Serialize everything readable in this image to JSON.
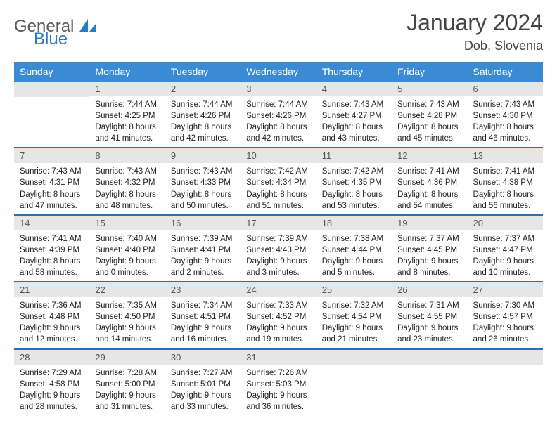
{
  "logo": {
    "part1": "General",
    "part2": "Blue"
  },
  "title": "January 2024",
  "location": "Dob, Slovenia",
  "dow": [
    "Sunday",
    "Monday",
    "Tuesday",
    "Wednesday",
    "Thursday",
    "Friday",
    "Saturday"
  ],
  "colors": {
    "headerBg": "#3b8bd4",
    "rowBorder": "#2a6fb5",
    "dayBarBg": "#e6e6e6",
    "logoBlue": "#2a7bc4",
    "logoGray": "#5a5a5a",
    "text": "#222"
  },
  "weeks": [
    [
      {
        "n": "",
        "lines": []
      },
      {
        "n": "1",
        "lines": [
          "Sunrise: 7:44 AM",
          "Sunset: 4:25 PM",
          "Daylight: 8 hours and 41 minutes."
        ]
      },
      {
        "n": "2",
        "lines": [
          "Sunrise: 7:44 AM",
          "Sunset: 4:26 PM",
          "Daylight: 8 hours and 42 minutes."
        ]
      },
      {
        "n": "3",
        "lines": [
          "Sunrise: 7:44 AM",
          "Sunset: 4:26 PM",
          "Daylight: 8 hours and 42 minutes."
        ]
      },
      {
        "n": "4",
        "lines": [
          "Sunrise: 7:43 AM",
          "Sunset: 4:27 PM",
          "Daylight: 8 hours and 43 minutes."
        ]
      },
      {
        "n": "5",
        "lines": [
          "Sunrise: 7:43 AM",
          "Sunset: 4:28 PM",
          "Daylight: 8 hours and 45 minutes."
        ]
      },
      {
        "n": "6",
        "lines": [
          "Sunrise: 7:43 AM",
          "Sunset: 4:30 PM",
          "Daylight: 8 hours and 46 minutes."
        ]
      }
    ],
    [
      {
        "n": "7",
        "lines": [
          "Sunrise: 7:43 AM",
          "Sunset: 4:31 PM",
          "Daylight: 8 hours and 47 minutes."
        ]
      },
      {
        "n": "8",
        "lines": [
          "Sunrise: 7:43 AM",
          "Sunset: 4:32 PM",
          "Daylight: 8 hours and 48 minutes."
        ]
      },
      {
        "n": "9",
        "lines": [
          "Sunrise: 7:43 AM",
          "Sunset: 4:33 PM",
          "Daylight: 8 hours and 50 minutes."
        ]
      },
      {
        "n": "10",
        "lines": [
          "Sunrise: 7:42 AM",
          "Sunset: 4:34 PM",
          "Daylight: 8 hours and 51 minutes."
        ]
      },
      {
        "n": "11",
        "lines": [
          "Sunrise: 7:42 AM",
          "Sunset: 4:35 PM",
          "Daylight: 8 hours and 53 minutes."
        ]
      },
      {
        "n": "12",
        "lines": [
          "Sunrise: 7:41 AM",
          "Sunset: 4:36 PM",
          "Daylight: 8 hours and 54 minutes."
        ]
      },
      {
        "n": "13",
        "lines": [
          "Sunrise: 7:41 AM",
          "Sunset: 4:38 PM",
          "Daylight: 8 hours and 56 minutes."
        ]
      }
    ],
    [
      {
        "n": "14",
        "lines": [
          "Sunrise: 7:41 AM",
          "Sunset: 4:39 PM",
          "Daylight: 8 hours and 58 minutes."
        ]
      },
      {
        "n": "15",
        "lines": [
          "Sunrise: 7:40 AM",
          "Sunset: 4:40 PM",
          "Daylight: 9 hours and 0 minutes."
        ]
      },
      {
        "n": "16",
        "lines": [
          "Sunrise: 7:39 AM",
          "Sunset: 4:41 PM",
          "Daylight: 9 hours and 2 minutes."
        ]
      },
      {
        "n": "17",
        "lines": [
          "Sunrise: 7:39 AM",
          "Sunset: 4:43 PM",
          "Daylight: 9 hours and 3 minutes."
        ]
      },
      {
        "n": "18",
        "lines": [
          "Sunrise: 7:38 AM",
          "Sunset: 4:44 PM",
          "Daylight: 9 hours and 5 minutes."
        ]
      },
      {
        "n": "19",
        "lines": [
          "Sunrise: 7:37 AM",
          "Sunset: 4:45 PM",
          "Daylight: 9 hours and 8 minutes."
        ]
      },
      {
        "n": "20",
        "lines": [
          "Sunrise: 7:37 AM",
          "Sunset: 4:47 PM",
          "Daylight: 9 hours and 10 minutes."
        ]
      }
    ],
    [
      {
        "n": "21",
        "lines": [
          "Sunrise: 7:36 AM",
          "Sunset: 4:48 PM",
          "Daylight: 9 hours and 12 minutes."
        ]
      },
      {
        "n": "22",
        "lines": [
          "Sunrise: 7:35 AM",
          "Sunset: 4:50 PM",
          "Daylight: 9 hours and 14 minutes."
        ]
      },
      {
        "n": "23",
        "lines": [
          "Sunrise: 7:34 AM",
          "Sunset: 4:51 PM",
          "Daylight: 9 hours and 16 minutes."
        ]
      },
      {
        "n": "24",
        "lines": [
          "Sunrise: 7:33 AM",
          "Sunset: 4:52 PM",
          "Daylight: 9 hours and 19 minutes."
        ]
      },
      {
        "n": "25",
        "lines": [
          "Sunrise: 7:32 AM",
          "Sunset: 4:54 PM",
          "Daylight: 9 hours and 21 minutes."
        ]
      },
      {
        "n": "26",
        "lines": [
          "Sunrise: 7:31 AM",
          "Sunset: 4:55 PM",
          "Daylight: 9 hours and 23 minutes."
        ]
      },
      {
        "n": "27",
        "lines": [
          "Sunrise: 7:30 AM",
          "Sunset: 4:57 PM",
          "Daylight: 9 hours and 26 minutes."
        ]
      }
    ],
    [
      {
        "n": "28",
        "lines": [
          "Sunrise: 7:29 AM",
          "Sunset: 4:58 PM",
          "Daylight: 9 hours and 28 minutes."
        ]
      },
      {
        "n": "29",
        "lines": [
          "Sunrise: 7:28 AM",
          "Sunset: 5:00 PM",
          "Daylight: 9 hours and 31 minutes."
        ]
      },
      {
        "n": "30",
        "lines": [
          "Sunrise: 7:27 AM",
          "Sunset: 5:01 PM",
          "Daylight: 9 hours and 33 minutes."
        ]
      },
      {
        "n": "31",
        "lines": [
          "Sunrise: 7:26 AM",
          "Sunset: 5:03 PM",
          "Daylight: 9 hours and 36 minutes."
        ]
      },
      {
        "n": "",
        "lines": []
      },
      {
        "n": "",
        "lines": []
      },
      {
        "n": "",
        "lines": []
      }
    ]
  ]
}
